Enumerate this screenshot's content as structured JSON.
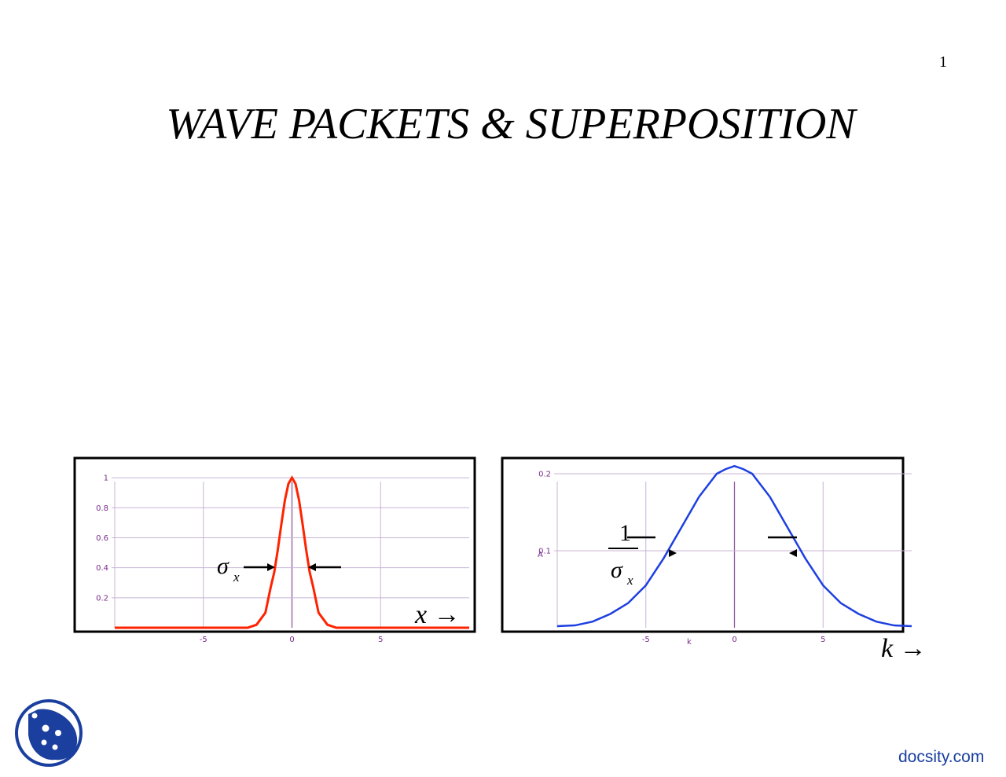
{
  "page": {
    "number": "1",
    "title": "WAVE PACKETS & SUPERPOSITION"
  },
  "colors": {
    "x_curve": "#ff2200",
    "k_curve": "#1e3fe0",
    "grid": "#c8b4d6",
    "axis": "#8e5a9e",
    "tick_text": "#7a2a8a",
    "brand": "#1a3f9e"
  },
  "chart_data": [
    {
      "type": "line",
      "series": [
        {
          "x": [
            -10,
            -9,
            -8,
            -7,
            -6,
            -5,
            -4,
            -3,
            -2.5,
            -2,
            -1.5,
            -1.2,
            -1,
            -0.8,
            -0.6,
            -0.4,
            -0.2,
            0,
            0.2,
            0.4,
            0.6,
            0.8,
            1,
            1.2,
            1.5,
            2,
            2.5,
            3,
            4,
            5,
            6,
            7,
            8,
            9,
            10
          ],
          "y": [
            0,
            0,
            0,
            0,
            0,
            0,
            0,
            0,
            0,
            0.02,
            0.1,
            0.27,
            0.37,
            0.52,
            0.69,
            0.85,
            0.96,
            1,
            0.96,
            0.85,
            0.69,
            0.52,
            0.37,
            0.27,
            0.1,
            0.02,
            0,
            0,
            0,
            0,
            0,
            0,
            0,
            0,
            0
          ]
        }
      ],
      "xticks": [
        "-5",
        "0",
        "5"
      ],
      "yticks": [
        "0.2",
        "0.4",
        "0.6",
        "0.8",
        "1"
      ],
      "xlim": [
        -10,
        10
      ],
      "ylim": [
        0,
        1.1
      ],
      "annotations": {
        "sigma": "σ",
        "subscript": "x",
        "axis_label": "x →"
      }
    },
    {
      "type": "line",
      "series": [
        {
          "x": [
            -10,
            -9,
            -8,
            -7,
            -6,
            -5,
            -4,
            -3,
            -2,
            -1,
            -0.5,
            0,
            0.5,
            1,
            2,
            3,
            4,
            5,
            6,
            7,
            8,
            9,
            10
          ],
          "y": [
            0.002,
            0.003,
            0.008,
            0.018,
            0.032,
            0.055,
            0.09,
            0.13,
            0.17,
            0.2,
            0.206,
            0.21,
            0.206,
            0.2,
            0.17,
            0.13,
            0.09,
            0.055,
            0.032,
            0.018,
            0.008,
            0.003,
            0.002
          ]
        }
      ],
      "xticks": [
        "-5",
        "0",
        "5"
      ],
      "yticks": [
        "0.1",
        "0.2"
      ],
      "xlabel": "k",
      "ylabel": "A",
      "xlim": [
        -10,
        10
      ],
      "ylim": [
        0,
        0.25
      ],
      "annotations": {
        "numerator": "1",
        "sigma": "σ",
        "subscript": "x",
        "axis_label": "k →"
      }
    }
  ],
  "footer": {
    "brand": "docsity.com"
  }
}
